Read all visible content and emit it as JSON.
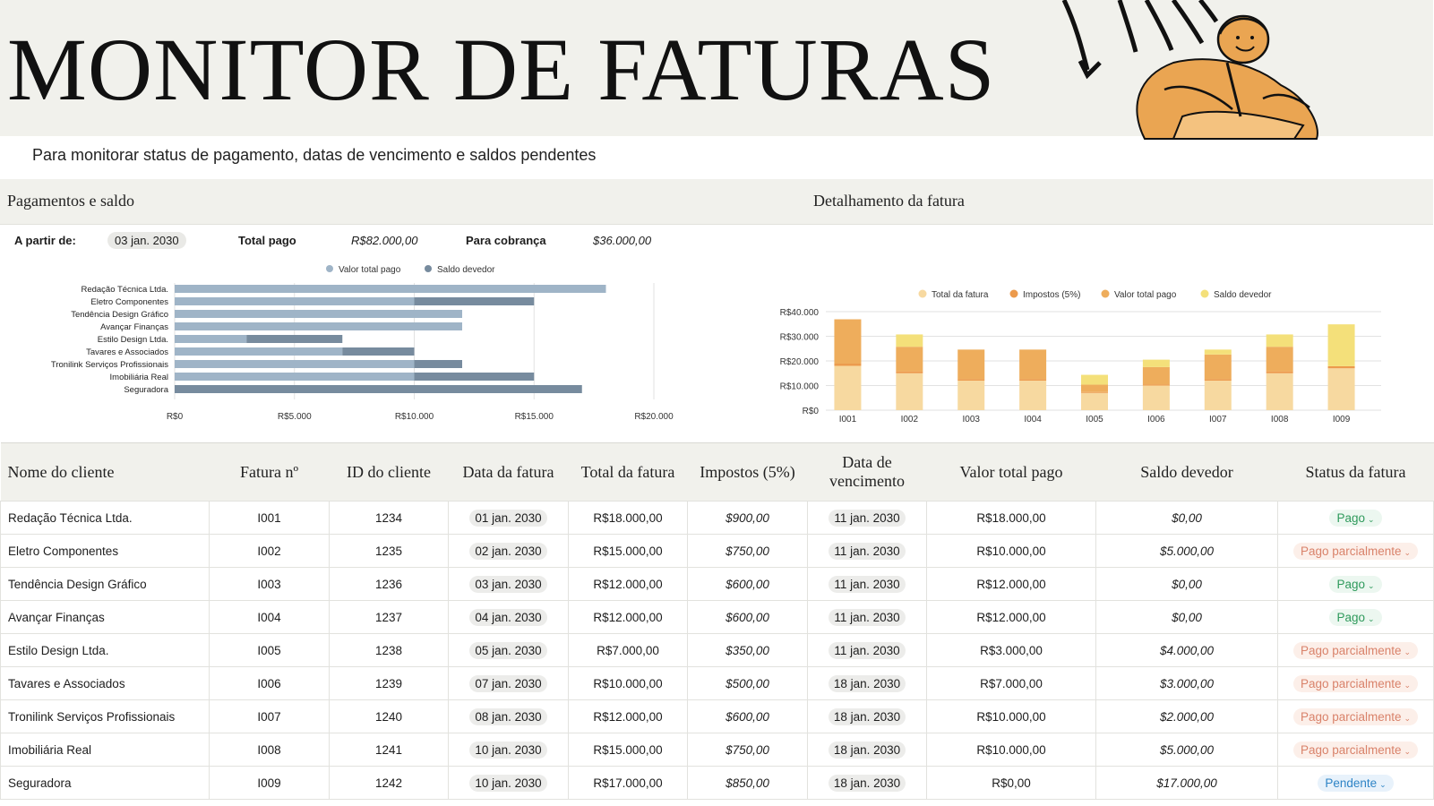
{
  "title": "MONITOR DE FATURAS",
  "subtitle": "Para monitorar status de pagamento, datas de vencimento e saldos pendentes",
  "sections": {
    "payments": "Pagamentos e saldo",
    "breakdown": "Detalhamento da fatura"
  },
  "summary": {
    "from_label": "A partir de:",
    "from_value": "03 jan. 2030",
    "total_paid_label": "Total pago",
    "total_paid_value": "R$82.000,00",
    "to_collect_label": "Para cobrança",
    "to_collect_value": "$36.000,00"
  },
  "colors": {
    "bar_paid": "#9fb4c7",
    "bar_due": "#778b9e",
    "col_total": "#f7d9a0",
    "col_tax": "#ec9a4c",
    "col_paid": "#eead5c",
    "col_due": "#f4e07a"
  },
  "chart_data": [
    {
      "type": "bar",
      "orientation": "horizontal",
      "categories": [
        "Redação Técnica Ltda.",
        "Eletro Componentes",
        "Tendência Design Gráfico",
        "Avançar Finanças",
        "Estilo Design Ltda.",
        "Tavares e Associados",
        "Tronilink Serviços Profissionais",
        "Imobiliária Real",
        "Seguradora"
      ],
      "series": [
        {
          "name": "Valor total pago",
          "values": [
            18000,
            10000,
            12000,
            12000,
            3000,
            7000,
            10000,
            10000,
            0
          ]
        },
        {
          "name": "Saldo devedor",
          "values": [
            0,
            5000,
            0,
            0,
            4000,
            3000,
            2000,
            5000,
            17000
          ]
        }
      ],
      "xticks": [
        "R$0",
        "R$5.000",
        "R$10.000",
        "R$15.000",
        "R$20.000"
      ],
      "xlim": [
        0,
        20000
      ],
      "legend": "top",
      "grid": true
    },
    {
      "type": "bar",
      "stacked": true,
      "categories": [
        "I001",
        "I002",
        "I003",
        "I004",
        "I005",
        "I006",
        "I007",
        "I008",
        "I009"
      ],
      "series": [
        {
          "name": "Total da fatura",
          "values": [
            18000,
            15000,
            12000,
            12000,
            7000,
            10000,
            12000,
            15000,
            17000
          ]
        },
        {
          "name": "Impostos (5%)",
          "values": [
            900,
            750,
            600,
            600,
            350,
            500,
            600,
            750,
            850
          ]
        },
        {
          "name": "Valor total pago",
          "values": [
            18000,
            10000,
            12000,
            12000,
            3000,
            7000,
            10000,
            10000,
            0
          ]
        },
        {
          "name": "Saldo devedor",
          "values": [
            0,
            5000,
            0,
            0,
            4000,
            3000,
            2000,
            5000,
            17000
          ]
        }
      ],
      "yticks": [
        "R$0",
        "R$10.000",
        "R$20.000",
        "R$30.000",
        "R$40.000"
      ],
      "ylim": [
        0,
        40000
      ],
      "legend": "top",
      "grid": true
    }
  ],
  "table": {
    "headers": [
      "Nome do cliente",
      "Fatura nº",
      "ID do cliente",
      "Data da fatura",
      "Total da fatura",
      "Impostos (5%)",
      "Data de vencimento",
      "Valor total pago",
      "Saldo devedor",
      "Status da fatura"
    ],
    "rows": [
      {
        "client": "Redação Técnica Ltda.",
        "invoice": "I001",
        "client_id": "1234",
        "date": "01 jan. 2030",
        "total": "R$18.000,00",
        "tax": "$900,00",
        "due": "11 jan. 2030",
        "paid": "R$18.000,00",
        "balance": "$0,00",
        "status": "Pago"
      },
      {
        "client": "Eletro Componentes",
        "invoice": "I002",
        "client_id": "1235",
        "date": "02 jan. 2030",
        "total": "R$15.000,00",
        "tax": "$750,00",
        "due": "11 jan. 2030",
        "paid": "R$10.000,00",
        "balance": "$5.000,00",
        "status": "Pago parcialmente"
      },
      {
        "client": "Tendência Design Gráfico",
        "invoice": "I003",
        "client_id": "1236",
        "date": "03 jan. 2030",
        "total": "R$12.000,00",
        "tax": "$600,00",
        "due": "11 jan. 2030",
        "paid": "R$12.000,00",
        "balance": "$0,00",
        "status": "Pago"
      },
      {
        "client": "Avançar Finanças",
        "invoice": "I004",
        "client_id": "1237",
        "date": "04 jan. 2030",
        "total": "R$12.000,00",
        "tax": "$600,00",
        "due": "11 jan. 2030",
        "paid": "R$12.000,00",
        "balance": "$0,00",
        "status": "Pago"
      },
      {
        "client": "Estilo Design Ltda.",
        "invoice": "I005",
        "client_id": "1238",
        "date": "05 jan. 2030",
        "total": "R$7.000,00",
        "tax": "$350,00",
        "due": "11 jan. 2030",
        "paid": "R$3.000,00",
        "balance": "$4.000,00",
        "status": "Pago parcialmente"
      },
      {
        "client": "Tavares e Associados",
        "invoice": "I006",
        "client_id": "1239",
        "date": "07 jan. 2030",
        "total": "R$10.000,00",
        "tax": "$500,00",
        "due": "18 jan. 2030",
        "paid": "R$7.000,00",
        "balance": "$3.000,00",
        "status": "Pago parcialmente"
      },
      {
        "client": "Tronilink Serviços Profissionais",
        "invoice": "I007",
        "client_id": "1240",
        "date": "08 jan. 2030",
        "total": "R$12.000,00",
        "tax": "$600,00",
        "due": "18 jan. 2030",
        "paid": "R$10.000,00",
        "balance": "$2.000,00",
        "status": "Pago parcialmente"
      },
      {
        "client": "Imobiliária Real",
        "invoice": "I008",
        "client_id": "1241",
        "date": "10 jan. 2030",
        "total": "R$15.000,00",
        "tax": "$750,00",
        "due": "18 jan. 2030",
        "paid": "R$10.000,00",
        "balance": "$5.000,00",
        "status": "Pago parcialmente"
      },
      {
        "client": "Seguradora",
        "invoice": "I009",
        "client_id": "1242",
        "date": "10 jan. 2030",
        "total": "R$17.000,00",
        "tax": "$850,00",
        "due": "18 jan. 2030",
        "paid": "R$0,00",
        "balance": "$17.000,00",
        "status": "Pendente"
      }
    ]
  }
}
